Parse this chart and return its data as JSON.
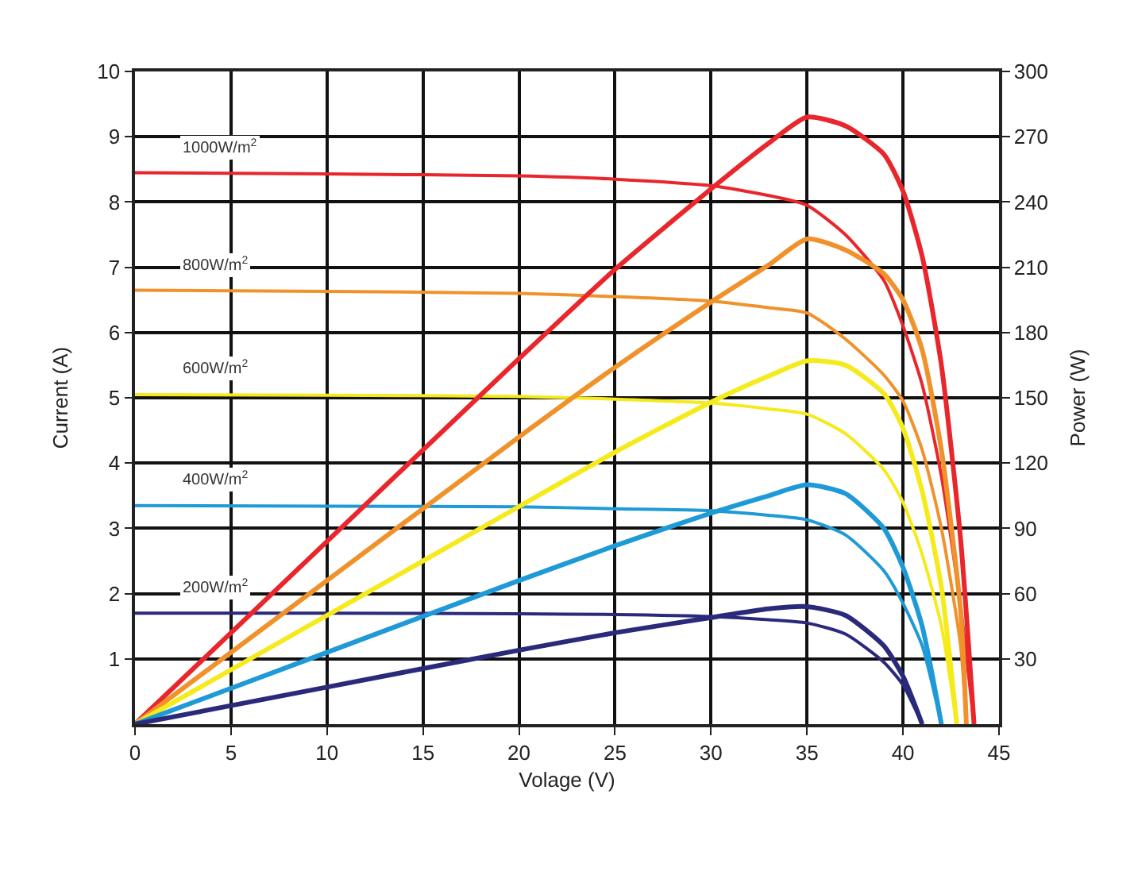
{
  "chart_data": {
    "type": "line",
    "xlabel": "Volage (V)",
    "ylabel": "Current (A)",
    "y2label": "Power (W)",
    "xlim": [
      0,
      45
    ],
    "xticks": [
      0,
      5,
      10,
      15,
      20,
      25,
      30,
      35,
      40,
      45
    ],
    "ylim": [
      0,
      10
    ],
    "yticks": [
      1,
      2,
      3,
      4,
      5,
      6,
      7,
      8,
      9,
      10
    ],
    "y2lim": [
      0,
      300
    ],
    "y2ticks": [
      30,
      60,
      90,
      120,
      150,
      180,
      210,
      240,
      270,
      300
    ],
    "grid": true,
    "marker": "none",
    "line_style": "solid",
    "series": [
      {
        "color": "#e8262b",
        "x": [
          0,
          10,
          20,
          25,
          30,
          33,
          35,
          37,
          39,
          40,
          41,
          42,
          43,
          43.7
        ],
        "values": [
          8.45,
          8.43,
          8.4,
          8.35,
          8.25,
          8.1,
          7.95,
          7.5,
          6.8,
          6.1,
          5.2,
          3.8,
          1.8,
          0
        ]
      },
      {
        "color": "#e8262b",
        "axis": "y2",
        "x": [
          0,
          10,
          20,
          25,
          30,
          33,
          35,
          37,
          39,
          40,
          41,
          42,
          43,
          43.7
        ],
        "values": [
          0,
          84,
          168,
          209,
          246,
          267,
          279,
          275,
          262,
          245,
          215,
          165,
          85,
          0
        ]
      },
      {
        "color": "#f0922b",
        "x": [
          0,
          10,
          20,
          25,
          30,
          33,
          35,
          37,
          39,
          40,
          41,
          42,
          43,
          43.3
        ],
        "values": [
          6.65,
          6.63,
          6.6,
          6.55,
          6.48,
          6.38,
          6.3,
          5.9,
          5.35,
          4.95,
          4.2,
          3.0,
          1.2,
          0
        ]
      },
      {
        "color": "#f0922b",
        "axis": "y2",
        "x": [
          0,
          10,
          20,
          25,
          30,
          33,
          35,
          37,
          39,
          40,
          41,
          42,
          43,
          43.3
        ],
        "values": [
          0,
          66,
          132,
          164,
          194,
          211,
          223,
          218,
          207,
          195,
          172,
          126,
          52,
          0
        ]
      },
      {
        "color": "#f5ea1c",
        "x": [
          0,
          10,
          20,
          25,
          30,
          33,
          35,
          37,
          39,
          40,
          41,
          42,
          42.8
        ],
        "values": [
          5.05,
          5.04,
          5.02,
          4.98,
          4.92,
          4.83,
          4.75,
          4.45,
          3.9,
          3.4,
          2.6,
          1.5,
          0
        ]
      },
      {
        "color": "#f5ea1c",
        "axis": "y2",
        "x": [
          0,
          10,
          20,
          25,
          30,
          33,
          35,
          37,
          39,
          40,
          41,
          42,
          42.8
        ],
        "values": [
          0,
          50,
          100,
          125,
          148,
          160,
          167,
          165,
          152,
          136,
          107,
          63,
          0
        ]
      },
      {
        "color": "#1e9ad6",
        "x": [
          0,
          10,
          20,
          25,
          30,
          33,
          35,
          37,
          39,
          40,
          41,
          42
        ],
        "values": [
          3.35,
          3.34,
          3.33,
          3.3,
          3.27,
          3.2,
          3.13,
          2.9,
          2.35,
          1.85,
          1.2,
          0
        ]
      },
      {
        "color": "#1e9ad6",
        "axis": "y2",
        "x": [
          0,
          10,
          20,
          25,
          30,
          33,
          35,
          37,
          39,
          40,
          41,
          42
        ],
        "values": [
          0,
          33,
          66,
          82,
          97,
          105,
          110,
          106,
          90,
          72,
          45,
          0
        ]
      },
      {
        "color": "#2b2a7a",
        "x": [
          0,
          10,
          20,
          25,
          30,
          33,
          35,
          37,
          39,
          40,
          41
        ],
        "values": [
          1.7,
          1.7,
          1.69,
          1.68,
          1.65,
          1.6,
          1.55,
          1.38,
          0.95,
          0.6,
          0
        ]
      },
      {
        "color": "#2b2a7a",
        "axis": "y2",
        "x": [
          0,
          10,
          20,
          25,
          30,
          33,
          35,
          37,
          39,
          40,
          41
        ],
        "values": [
          0,
          17,
          34,
          42,
          49,
          53,
          54,
          50,
          36,
          22,
          0
        ]
      }
    ],
    "annotations": [
      "1000W/m$^{2}$",
      "800W/m$^{2}$",
      "600W/m$^{2}$",
      "400W/m$^{2}$",
      "200W/m$^{2}$"
    ]
  }
}
